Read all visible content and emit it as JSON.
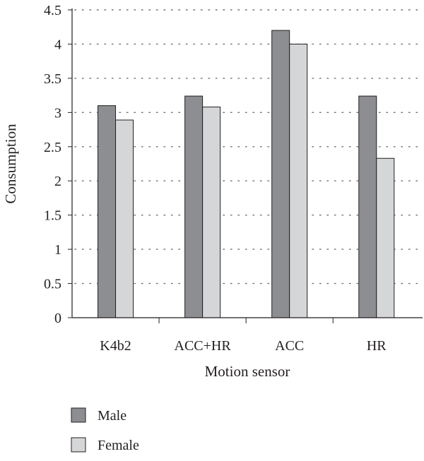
{
  "chart_data": {
    "type": "bar",
    "categories": [
      "K4b2",
      "ACC+HR",
      "ACC",
      "HR"
    ],
    "series": [
      {
        "name": "Male",
        "values": [
          3.1,
          3.24,
          4.2,
          3.24
        ],
        "color": "#8c8e91"
      },
      {
        "name": "Female",
        "values": [
          2.89,
          3.08,
          4.0,
          2.33
        ],
        "color": "#d5d6d8"
      }
    ],
    "title": "",
    "xlabel": "Motion sensor",
    "ylabel": "Consumption",
    "ylim": [
      0,
      4.5
    ],
    "yticks": [
      "0",
      "0.5",
      "1",
      "1.5",
      "2",
      "2.5",
      "3",
      "3.5",
      "4",
      "4.5"
    ],
    "grid": "horizontal dotted",
    "legend_position": "bottom-left"
  }
}
